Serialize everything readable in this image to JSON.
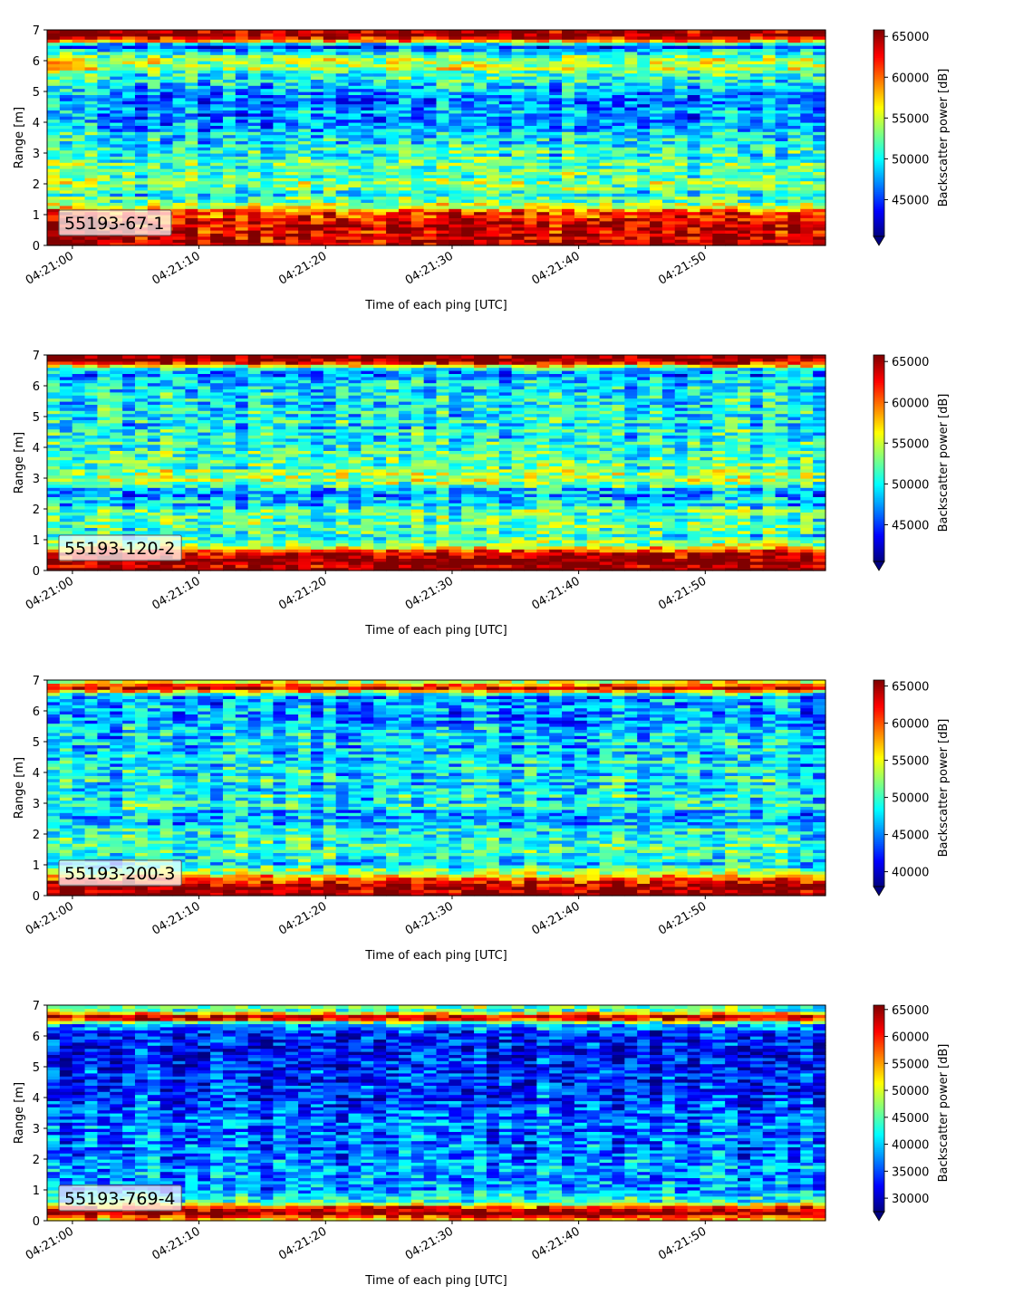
{
  "chart_data": [
    {
      "type": "heatmap",
      "panel_label": "55193-67-1",
      "xlabel": "Time of each ping [UTC]",
      "ylabel": "Range [m]",
      "x_ticks": [
        "04:21:00",
        "04:21:10",
        "04:21:20",
        "04:21:30",
        "04:21:40",
        "04:21:50"
      ],
      "x_tick_seconds": [
        0,
        10,
        20,
        30,
        40,
        50
      ],
      "xlim_seconds": [
        -2,
        59.5
      ],
      "ylim": [
        0,
        7
      ],
      "y_ticks": [
        0,
        1,
        2,
        3,
        4,
        5,
        6,
        7
      ],
      "colorbar_label": "Backscatter power [dB]",
      "clim": [
        40500,
        65800
      ],
      "colorbar_ticks": [
        45000,
        50000,
        55000,
        60000,
        65000
      ],
      "colorbar_extend": "min",
      "colormap": "jet",
      "profile_range_m": [
        0.2,
        0.5,
        0.8,
        1.1,
        1.4,
        1.7,
        2.0,
        2.5,
        3.0,
        3.5,
        4.0,
        5.0,
        6.0,
        6.45,
        6.8
      ],
      "profile_power": [
        64500,
        64000,
        63000,
        60000,
        52000,
        51000,
        53000,
        52000,
        51000,
        50000,
        48000,
        47500,
        55500,
        45000,
        65800
      ]
    },
    {
      "type": "heatmap",
      "panel_label": "55193-120-2",
      "xlabel": "Time of each ping [UTC]",
      "ylabel": "Range [m]",
      "x_ticks": [
        "04:21:00",
        "04:21:10",
        "04:21:20",
        "04:21:30",
        "04:21:40",
        "04:21:50"
      ],
      "x_tick_seconds": [
        0,
        10,
        20,
        30,
        40,
        50
      ],
      "xlim_seconds": [
        -2,
        59.5
      ],
      "ylim": [
        0,
        7
      ],
      "y_ticks": [
        0,
        1,
        2,
        3,
        4,
        5,
        6,
        7
      ],
      "colorbar_label": "Backscatter power [dB]",
      "clim": [
        40500,
        65800
      ],
      "colorbar_ticks": [
        45000,
        50000,
        55000,
        60000,
        65000
      ],
      "colorbar_extend": "min",
      "colormap": "jet",
      "profile_range_m": [
        0.2,
        0.5,
        0.7,
        1.0,
        1.5,
        2.0,
        2.5,
        3.0,
        3.5,
        4.0,
        5.0,
        6.0,
        6.5,
        6.8
      ],
      "profile_power": [
        65800,
        64500,
        58000,
        50000,
        52000,
        51000,
        47000,
        54000,
        52000,
        51000,
        50000,
        49000,
        46000,
        65800
      ]
    },
    {
      "type": "heatmap",
      "panel_label": "55193-200-3",
      "xlabel": "Time of each ping [UTC]",
      "ylabel": "Range [m]",
      "x_ticks": [
        "04:21:00",
        "04:21:10",
        "04:21:20",
        "04:21:30",
        "04:21:40",
        "04:21:50"
      ],
      "x_tick_seconds": [
        0,
        10,
        20,
        30,
        40,
        50
      ],
      "xlim_seconds": [
        -2,
        59.5
      ],
      "ylim": [
        0,
        7
      ],
      "y_ticks": [
        0,
        1,
        2,
        3,
        4,
        5,
        6,
        7
      ],
      "colorbar_label": "Backscatter power [dB]",
      "clim": [
        38000,
        65800
      ],
      "colorbar_ticks": [
        40000,
        45000,
        50000,
        55000,
        60000,
        65000
      ],
      "colorbar_extend": "min",
      "colormap": "jet",
      "profile_range_m": [
        0.2,
        0.4,
        0.6,
        1.0,
        1.5,
        2.0,
        2.5,
        3.0,
        4.0,
        5.0,
        6.0,
        6.5,
        6.75,
        6.95
      ],
      "profile_power": [
        65800,
        64500,
        58000,
        47000,
        49000,
        50000,
        46000,
        49000,
        48000,
        47000,
        46000,
        45000,
        64000,
        55000
      ]
    },
    {
      "type": "heatmap",
      "panel_label": "55193-769-4",
      "xlabel": "Time of each ping [UTC]",
      "ylabel": "Range [m]",
      "x_ticks": [
        "04:21:00",
        "04:21:10",
        "04:21:20",
        "04:21:30",
        "04:21:40",
        "04:21:50"
      ],
      "x_tick_seconds": [
        0,
        10,
        20,
        30,
        40,
        50
      ],
      "xlim_seconds": [
        -2,
        59.5
      ],
      "ylim": [
        0,
        7
      ],
      "y_ticks": [
        0,
        1,
        2,
        3,
        4,
        5,
        6,
        7
      ],
      "colorbar_label": "Backscatter power [dB]",
      "clim": [
        27500,
        65800
      ],
      "colorbar_ticks": [
        30000,
        35000,
        40000,
        45000,
        50000,
        55000,
        60000,
        65000
      ],
      "colorbar_extend": "min",
      "colormap": "jet",
      "profile_range_m": [
        0.1,
        0.25,
        0.4,
        0.6,
        1.0,
        2.0,
        3.0,
        4.0,
        5.0,
        6.0,
        6.4,
        6.6,
        6.85
      ],
      "profile_power": [
        55000,
        65000,
        62000,
        45000,
        38000,
        37000,
        36000,
        34000,
        33000,
        33500,
        40000,
        64000,
        44000
      ]
    }
  ]
}
